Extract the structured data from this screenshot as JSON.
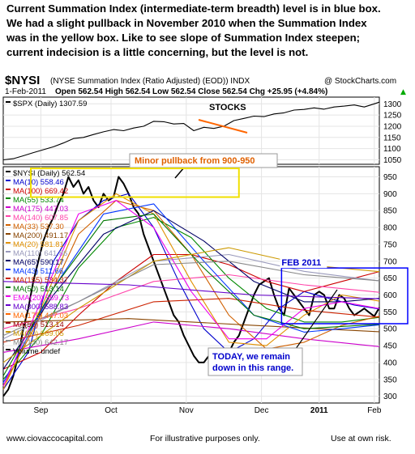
{
  "headline": [
    "Current Summation Index (intermediate-term breadth) level is in blue box.",
    "We had a slight pullback in November 2010 when the Summation Index",
    "was in the yellow box.  Like to see slope of Summation Index steepen;",
    "current indecision is a little concerning, but the level is not."
  ],
  "chart_header": {
    "symbol": "$NYSI",
    "name": "(NYSE Summation Index (Ratio Adjusted) (EOD)) INDX",
    "watermark": "@ StockCharts.com",
    "date": "1-Feb-2011",
    "quote": "Open 562.54  High 562.54  Low 562.54  Close 562.54  Chg +25.95 (+4.84%)",
    "quote_arrow": "▲"
  },
  "footer": {
    "left": "www.ciovaccocapital.com",
    "center": "For illustrative purposes only.",
    "right": "Use at own risk."
  },
  "annotations": {
    "stocks": "STOCKS",
    "pullback": "Minor pullback from 900-950",
    "feb2011": "FEB 2011",
    "today": [
      "TODAY, we remain",
      "down in this range."
    ]
  },
  "colors": {
    "nysi": "#000000",
    "spx": "#000000",
    "yellow_box": "#f0e000",
    "blue_box": "#0000ff",
    "stocks_arrow": "#ff6600",
    "pullback_text": "#e06000",
    "feb_label": "#0000cc",
    "today_text": "#0000cc"
  },
  "chart_data": [
    {
      "type": "line",
      "legend": [
        {
          "label": "$SPX (Daily) 1307.59",
          "color": "#000000"
        }
      ],
      "x_tick_labels": [
        "Sep",
        "Oct",
        "Nov",
        "Dec",
        "2011",
        "Feb"
      ],
      "y_tick_labels": [
        1050,
        1100,
        1150,
        1200,
        1250,
        1300
      ],
      "ylim": [
        1030,
        1330
      ],
      "series": [
        {
          "name": "$SPX (Daily) 1307.59",
          "color": "#000000",
          "x": [
            0,
            4,
            8,
            12,
            16,
            20,
            24,
            28,
            32,
            36,
            40,
            44,
            48,
            52,
            56,
            60,
            64,
            68,
            72,
            76,
            80,
            84,
            88,
            92,
            96,
            100,
            104,
            108,
            112,
            116,
            120,
            124,
            128,
            132,
            136,
            140,
            144,
            148,
            150
          ],
          "y": [
            1050,
            1055,
            1068,
            1082,
            1095,
            1108,
            1125,
            1145,
            1150,
            1163,
            1175,
            1185,
            1180,
            1192,
            1200,
            1222,
            1220,
            1210,
            1212,
            1180,
            1195,
            1190,
            1200,
            1225,
            1235,
            1245,
            1243,
            1255,
            1260,
            1272,
            1275,
            1282,
            1276,
            1286,
            1290,
            1295,
            1286,
            1300,
            1307.59
          ]
        }
      ]
    },
    {
      "type": "line",
      "legend": [
        {
          "label": "$NYSI (Daily) 562.54",
          "color": "#000000"
        },
        {
          "label": "MA(10) 558.46",
          "color": "#0000cc"
        },
        {
          "label": "MA(100) 669.42",
          "color": "#cc0000"
        },
        {
          "label": "MA(55) 533.74",
          "color": "#008800"
        },
        {
          "label": "MA(175) 447.03",
          "color": "#cc00cc"
        },
        {
          "label": "MA(140) 607.85",
          "color": "#ff44aa"
        },
        {
          "label": "MA(33) 537.30",
          "color": "#d06000"
        },
        {
          "label": "MA(200) 491.17",
          "color": "#884400"
        },
        {
          "label": "MA(20) 581.81",
          "color": "#e09000"
        },
        {
          "label": "MA(110) 641.86",
          "color": "#9999bb"
        },
        {
          "label": "MA(65) 590.17",
          "color": "#000066"
        },
        {
          "label": "MA(43) 511.66",
          "color": "#0033ff"
        },
        {
          "label": "MA(155) 534.37",
          "color": "#cc2200"
        },
        {
          "label": "MA(50) 513.14",
          "color": "#007700"
        },
        {
          "label": "EMA(20) 559.73",
          "color": "#ee00ee"
        },
        {
          "label": "MA(300) 588.83",
          "color": "#6600cc"
        },
        {
          "label": "MA(175) 447.03",
          "color": "#ff6600"
        },
        {
          "label": "MA(50) 513.14",
          "color": "#990000"
        },
        {
          "label": "MA(90) 669.05",
          "color": "#cc9900"
        },
        {
          "label": "MA(130) 642.17",
          "color": "#888888"
        },
        {
          "label": "Volume undef",
          "color": "#000000"
        }
      ],
      "x_tick_labels": [
        "Sep",
        "Oct",
        "Nov",
        "Dec",
        "2011",
        "Feb"
      ],
      "y_tick_labels": [
        300,
        350,
        400,
        450,
        500,
        550,
        600,
        650,
        700,
        750,
        800,
        850,
        900,
        950
      ],
      "ylim": [
        280,
        980
      ],
      "annotation_ranges": {
        "yellow_box": [
          890,
          975
        ],
        "blue_box": [
          515,
          680
        ]
      },
      "series": [
        {
          "name": "$NYSI (Daily) 562.54",
          "color": "#000000",
          "width": 2.0,
          "x": [
            0,
            2,
            4,
            6,
            8,
            10,
            12,
            14,
            16,
            18,
            20,
            22,
            24,
            26,
            28,
            30,
            32,
            34,
            36,
            38,
            40,
            42,
            44,
            46,
            48,
            50,
            52,
            54,
            56,
            58,
            60,
            62,
            64,
            66,
            68,
            70,
            72,
            74,
            76,
            78,
            80,
            82,
            84,
            86,
            88,
            90,
            92,
            94,
            96,
            98,
            100,
            102,
            104,
            106,
            108,
            110,
            112,
            114,
            116,
            118,
            120,
            122,
            124,
            126,
            128,
            130,
            132,
            134,
            136,
            138,
            140,
            142,
            144,
            146,
            148,
            150
          ],
          "y": [
            300,
            320,
            360,
            420,
            500,
            560,
            640,
            700,
            760,
            800,
            830,
            870,
            900,
            950,
            920,
            940,
            900,
            920,
            880,
            860,
            900,
            880,
            890,
            950,
            930,
            900,
            860,
            840,
            780,
            740,
            700,
            660,
            620,
            580,
            540,
            520,
            480,
            450,
            420,
            400,
            400,
            420,
            430,
            420,
            410,
            430,
            460,
            480,
            520,
            560,
            600,
            630,
            640,
            650,
            600,
            560,
            540,
            620,
            600,
            580,
            560,
            540,
            600,
            610,
            600,
            560,
            560,
            600,
            590,
            560,
            540,
            550,
            560,
            548,
            537,
            562.54
          ]
        },
        {
          "name": "MA(10) 558.46",
          "color": "#0000cc",
          "x": [
            0,
            10,
            20,
            30,
            40,
            50,
            60,
            70,
            80,
            90,
            100,
            110,
            120,
            130,
            140,
            150
          ],
          "y": [
            320,
            430,
            700,
            820,
            880,
            900,
            800,
            640,
            500,
            430,
            470,
            560,
            610,
            590,
            570,
            558.46
          ]
        },
        {
          "name": "MA(100) 669.42",
          "color": "#cc0000",
          "x": [
            0,
            15,
            30,
            45,
            60,
            75,
            90,
            105,
            120,
            135,
            150
          ],
          "y": [
            380,
            430,
            540,
            640,
            720,
            720,
            690,
            640,
            610,
            640,
            669.42
          ]
        },
        {
          "name": "MA(55) 533.74",
          "color": "#008800",
          "x": [
            0,
            15,
            30,
            45,
            60,
            75,
            90,
            105,
            120,
            135,
            150
          ],
          "y": [
            350,
            480,
            680,
            800,
            830,
            770,
            650,
            560,
            520,
            520,
            533.74
          ]
        },
        {
          "name": "MA(175) 447.03",
          "color": "#cc00cc",
          "x": [
            0,
            30,
            60,
            90,
            120,
            150
          ],
          "y": [
            430,
            470,
            520,
            500,
            470,
            447.03
          ]
        },
        {
          "name": "MA(140) 607.85",
          "color": "#ff44aa",
          "x": [
            0,
            30,
            60,
            90,
            120,
            150
          ],
          "y": [
            500,
            560,
            640,
            660,
            630,
            607.85
          ]
        },
        {
          "name": "MA(33) 537.30",
          "color": "#d06000",
          "x": [
            0,
            15,
            30,
            45,
            60,
            75,
            90,
            105,
            120,
            135,
            150
          ],
          "y": [
            330,
            540,
            780,
            880,
            850,
            720,
            540,
            440,
            460,
            510,
            537.3
          ]
        },
        {
          "name": "MA(200) 491.17",
          "color": "#884400",
          "x": [
            0,
            50,
            100,
            150
          ],
          "y": [
            520,
            530,
            510,
            491.17
          ]
        },
        {
          "name": "MA(20) 581.81",
          "color": "#e09000",
          "x": [
            0,
            15,
            30,
            45,
            60,
            75,
            90,
            105,
            120,
            135,
            150
          ],
          "y": [
            320,
            560,
            820,
            900,
            840,
            640,
            460,
            450,
            540,
            600,
            581.81
          ]
        },
        {
          "name": "MA(110) 641.86",
          "color": "#9999bb",
          "x": [
            0,
            30,
            60,
            90,
            120,
            150
          ],
          "y": [
            470,
            580,
            700,
            720,
            670,
            641.86
          ]
        },
        {
          "name": "MA(65) 590.17",
          "color": "#000066",
          "x": [
            0,
            20,
            40,
            60,
            80,
            100,
            120,
            135,
            150
          ],
          "y": [
            380,
            600,
            780,
            850,
            760,
            640,
            580,
            580,
            590.17
          ]
        },
        {
          "name": "MA(43) 511.66",
          "color": "#0033ff",
          "x": [
            0,
            20,
            40,
            60,
            80,
            100,
            120,
            135,
            150
          ],
          "y": [
            340,
            620,
            840,
            870,
            700,
            540,
            490,
            500,
            511.66
          ]
        },
        {
          "name": "MA(155) 534.37",
          "color": "#cc2200",
          "x": [
            0,
            30,
            60,
            90,
            120,
            150
          ],
          "y": [
            460,
            510,
            580,
            590,
            555,
            534.37
          ]
        },
        {
          "name": "MA(50) 513.14",
          "color": "#007700",
          "x": [
            0,
            20,
            40,
            60,
            80,
            100,
            120,
            150
          ],
          "y": [
            360,
            620,
            820,
            840,
            680,
            540,
            500,
            513.14
          ]
        },
        {
          "name": "EMA(20) 559.73",
          "color": "#ee00ee",
          "x": [
            0,
            15,
            30,
            45,
            60,
            75,
            90,
            105,
            120,
            135,
            150
          ],
          "y": [
            330,
            580,
            840,
            880,
            800,
            610,
            470,
            470,
            560,
            580,
            559.73
          ]
        },
        {
          "name": "MA(300) 588.83",
          "color": "#6600cc",
          "x": [
            0,
            50,
            100,
            150
          ],
          "y": [
            640,
            630,
            600,
            588.83
          ]
        },
        {
          "name": "MA(90) 669.05",
          "color": "#cc9900",
          "x": [
            0,
            30,
            60,
            90,
            120,
            150
          ],
          "y": [
            400,
            560,
            700,
            740,
            690,
            669.05
          ]
        },
        {
          "name": "MA(130) 642.17",
          "color": "#888888",
          "x": [
            0,
            30,
            60,
            90,
            120,
            150
          ],
          "y": [
            480,
            580,
            690,
            700,
            660,
            642.17
          ]
        }
      ]
    }
  ]
}
